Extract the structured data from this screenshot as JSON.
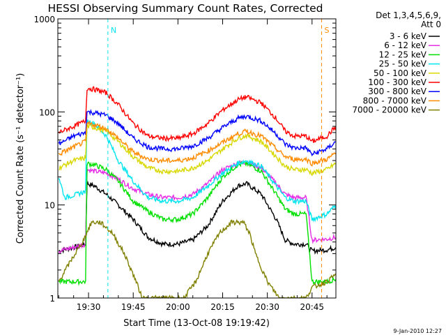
{
  "chart_data": {
    "type": "line",
    "title": "HESSI Observing Summary Count Rates, Corrected",
    "xlabel": "Start Time (13-Oct-08 19:19:42)",
    "ylabel": "Corrected Count Rate (s⁻¹ detector⁻¹)",
    "yscale": "log",
    "ylim": [
      1,
      1000
    ],
    "xlim_minutes": [
      19.7,
      113.0
    ],
    "x_tick_labels": [
      "19:30",
      "19:45",
      "20:00",
      "20:15",
      "20:30",
      "20:45"
    ],
    "x_tick_minutes": [
      30,
      45,
      60,
      75,
      90,
      105
    ],
    "y_tick_labels": [
      "1",
      "10",
      "100",
      "1000"
    ],
    "y_tick_values": [
      1,
      10,
      100,
      1000
    ],
    "legend": {
      "placement": "right",
      "header": [
        "Det 1,3,4,5,6,9,",
        "Att 0"
      ]
    },
    "annotations": [
      {
        "text": "N",
        "minute": 36.5,
        "color": "#00e5ee"
      },
      {
        "text": "S",
        "minute": 108.2,
        "color": "#ff8c00"
      }
    ],
    "footer_date": "9-Jan-2010 12:27",
    "series": [
      {
        "name": "3 - 6 keV",
        "color": "#000000",
        "x": [
          20,
          25,
          29,
          29.5,
          32,
          36,
          40,
          45,
          50,
          55,
          60,
          65,
          70,
          75,
          80,
          83,
          88,
          93,
          96,
          99,
          103,
          105,
          110,
          113
        ],
        "y": [
          3.2,
          3.5,
          3.8,
          17,
          16,
          13,
          10,
          7,
          4.5,
          3.8,
          3.8,
          4.2,
          6,
          11,
          16,
          17,
          13,
          7,
          4.2,
          3.8,
          3.8,
          3.2,
          3.3,
          3.5
        ]
      },
      {
        "name": "6 - 12 keV",
        "color": "#e62ee6",
        "x": [
          20,
          25,
          29,
          29.5,
          32,
          36,
          40,
          45,
          50,
          55,
          60,
          65,
          70,
          75,
          80,
          83,
          88,
          93,
          96,
          99,
          103,
          105,
          110,
          113
        ],
        "y": [
          3.2,
          3.5,
          3.8,
          24,
          23,
          22,
          19,
          15,
          13,
          12,
          12,
          13,
          17,
          24,
          28,
          29,
          25,
          17,
          13,
          12,
          12,
          4.2,
          4.3,
          4.5
        ]
      },
      {
        "name": "12 - 25 keV",
        "color": "#00e000",
        "x": [
          20,
          25,
          29,
          29.5,
          32,
          36,
          40,
          45,
          50,
          55,
          60,
          65,
          70,
          75,
          80,
          83,
          88,
          93,
          96,
          99,
          103,
          105,
          110,
          113
        ],
        "y": [
          1.5,
          1.5,
          1.5,
          28,
          27,
          24,
          18,
          11,
          8.5,
          7,
          7,
          8,
          12,
          20,
          27,
          28,
          23,
          13,
          9,
          8,
          8,
          1.5,
          1.5,
          1.6
        ]
      },
      {
        "name": "25 - 50 keV",
        "color": "#00e5ee",
        "x": [
          20,
          22,
          26,
          29,
          29.5,
          32,
          36,
          40,
          45,
          50,
          55,
          60,
          65,
          70,
          75,
          80,
          83,
          88,
          93,
          96,
          99,
          103,
          105,
          110,
          113
        ],
        "y": [
          20,
          12,
          13,
          14,
          80,
          75,
          55,
          30,
          18,
          12,
          11,
          11,
          12,
          16,
          22,
          28,
          30,
          26,
          16,
          12,
          11,
          11,
          7,
          8,
          10
        ]
      },
      {
        "name": "50 - 100 keV",
        "color": "#d8d800",
        "x": [
          20,
          25,
          29,
          29.5,
          32,
          36,
          40,
          45,
          50,
          55,
          60,
          65,
          70,
          75,
          80,
          83,
          88,
          93,
          96,
          99,
          103,
          105,
          110,
          113
        ],
        "y": [
          25,
          30,
          32,
          70,
          68,
          62,
          48,
          33,
          25,
          23,
          23,
          25,
          30,
          40,
          52,
          56,
          48,
          33,
          26,
          24,
          24,
          22,
          24,
          28
        ]
      },
      {
        "name": "100 - 300 keV",
        "color": "#ff0000",
        "x": [
          20,
          25,
          29,
          29.5,
          32,
          36,
          40,
          45,
          50,
          55,
          60,
          65,
          70,
          75,
          80,
          83,
          88,
          93,
          96,
          99,
          103,
          105,
          110,
          113
        ],
        "y": [
          60,
          70,
          80,
          180,
          175,
          160,
          120,
          75,
          55,
          52,
          52,
          58,
          75,
          105,
          135,
          145,
          125,
          85,
          62,
          55,
          55,
          48,
          55,
          70
        ]
      },
      {
        "name": "300 - 800 keV",
        "color": "#0000ff",
        "x": [
          20,
          25,
          29,
          29.5,
          32,
          36,
          40,
          45,
          50,
          55,
          60,
          65,
          70,
          75,
          80,
          83,
          88,
          93,
          96,
          99,
          103,
          105,
          110,
          113
        ],
        "y": [
          45,
          55,
          60,
          100,
          98,
          92,
          75,
          52,
          42,
          40,
          40,
          43,
          52,
          68,
          85,
          90,
          80,
          58,
          45,
          41,
          41,
          35,
          40,
          48
        ]
      },
      {
        "name": "800 - 7000 keV",
        "color": "#ff8c00",
        "x": [
          20,
          25,
          29,
          29.5,
          32,
          36,
          40,
          45,
          50,
          55,
          60,
          65,
          70,
          75,
          80,
          83,
          88,
          93,
          96,
          99,
          103,
          105,
          110,
          113
        ],
        "y": [
          35,
          42,
          48,
          75,
          73,
          66,
          52,
          37,
          31,
          30,
          30,
          32,
          38,
          47,
          58,
          62,
          55,
          40,
          33,
          31,
          31,
          28,
          31,
          36
        ]
      },
      {
        "name": "7000 - 20000 keV",
        "color": "#808000",
        "x": [
          20,
          24,
          28,
          31,
          34,
          38,
          42,
          46,
          48,
          52,
          56,
          62,
          66,
          70,
          74,
          78,
          82,
          84,
          86,
          90,
          94,
          98,
          100,
          103,
          105,
          110,
          113
        ],
        "y": [
          1.5,
          2.5,
          4,
          6.5,
          6.5,
          5,
          3,
          1.5,
          1,
          1,
          1,
          1,
          1.5,
          3,
          5,
          6.5,
          6.5,
          5,
          3,
          1.5,
          1,
          1,
          1,
          1,
          1.3,
          1.5,
          1.8
        ]
      }
    ]
  }
}
